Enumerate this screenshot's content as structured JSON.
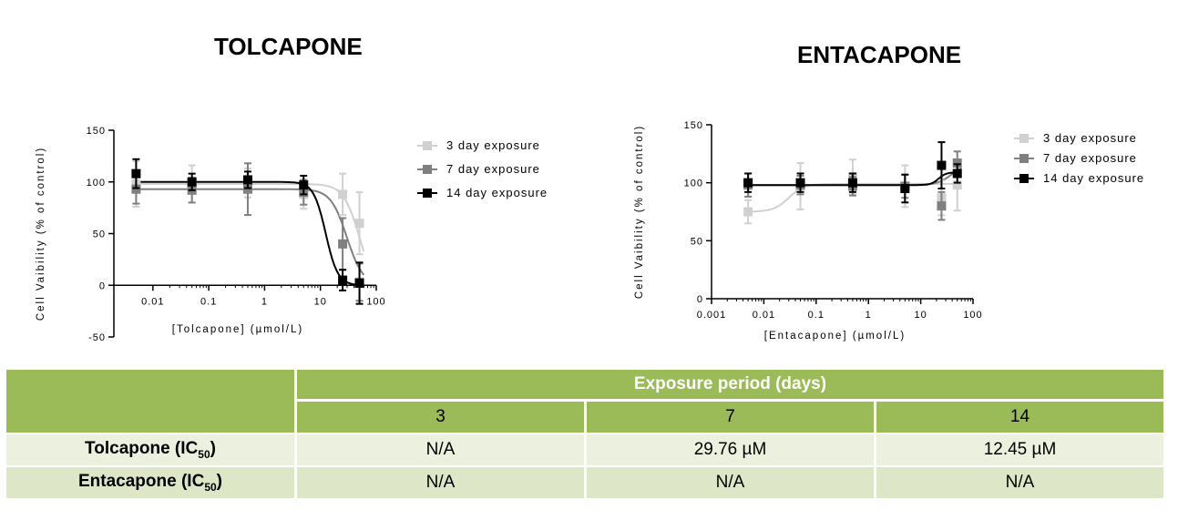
{
  "chart_data": [
    {
      "type": "scatter",
      "title": "TOLCAPONE",
      "xlabel": "[Tolcapone] (µmol/L)",
      "ylabel": "Cell Vaibility (% of control)",
      "xscale": "log",
      "xlim": [
        0.002,
        100
      ],
      "ylim": [
        -50,
        150
      ],
      "xticks": [
        0.01,
        0.1,
        1,
        10,
        100
      ],
      "xtick_labels": [
        "0.01",
        "0.1",
        "1",
        "10",
        "100"
      ],
      "yticks": [
        -50,
        0,
        50,
        100,
        150
      ],
      "ytick_labels": [
        "-50",
        "0",
        "50",
        "100",
        "150"
      ],
      "legend_position": "right",
      "series": [
        {
          "name": "3 day exposure",
          "color": "#d0d0d0",
          "x": [
            0.005,
            0.05,
            0.5,
            5,
            25,
            50
          ],
          "y": [
            98,
            98,
            99,
            88,
            88,
            60
          ],
          "err": [
            22,
            18,
            14,
            14,
            20,
            30
          ],
          "fit": {
            "top": 98,
            "bottom": -5,
            "ic50": 50,
            "hill": 3
          }
        },
        {
          "name": "7 day exposure",
          "color": "#7f7f7f",
          "x": [
            0.005,
            0.05,
            0.5,
            5,
            25,
            50
          ],
          "y": [
            93,
            92,
            93,
            90,
            40,
            3
          ],
          "err": [
            14,
            12,
            25,
            12,
            25,
            18
          ],
          "fit": {
            "top": 93,
            "bottom": 0,
            "ic50": 29.76,
            "hill": 3
          }
        },
        {
          "name": "14 day exposure",
          "color": "#000000",
          "x": [
            0.005,
            0.05,
            0.5,
            5,
            25,
            50
          ],
          "y": [
            108,
            100,
            102,
            97,
            5,
            2
          ],
          "err": [
            14,
            8,
            8,
            9,
            10,
            20
          ],
          "fit": {
            "top": 100,
            "bottom": 0,
            "ic50": 12.45,
            "hill": 4
          }
        }
      ]
    },
    {
      "type": "scatter",
      "title": "ENTACAPONE",
      "xlabel": "[Entacapone] (µmol/L)",
      "ylabel": "Cell Vaibility (% of control)",
      "xscale": "log",
      "xlim": [
        0.001,
        100
      ],
      "ylim": [
        0,
        150
      ],
      "xticks": [
        0.001,
        0.01,
        0.1,
        1,
        10,
        100
      ],
      "xtick_labels": [
        "0.001",
        "0.01",
        "0.1",
        "1",
        "10",
        "100"
      ],
      "yticks": [
        0,
        50,
        100,
        150
      ],
      "ytick_labels": [
        "0",
        "50",
        "100",
        "150"
      ],
      "legend_position": "top-right",
      "series": [
        {
          "name": "3 day exposure",
          "color": "#d0d0d0",
          "x": [
            0.005,
            0.05,
            0.5,
            5,
            25,
            50
          ],
          "y": [
            75,
            97,
            105,
            97,
            87,
            98
          ],
          "err": [
            10,
            20,
            15,
            18,
            15,
            22
          ],
          "fit": {
            "bottom": 75,
            "top": 99,
            "ec50": 0.03,
            "hill": 3
          }
        },
        {
          "name": "7 day exposure",
          "color": "#7f7f7f",
          "x": [
            0.005,
            0.05,
            0.5,
            5,
            25,
            50
          ],
          "y": [
            98,
            98,
            97,
            97,
            80,
            117
          ],
          "err": [
            10,
            8,
            8,
            10,
            12,
            10
          ],
          "fit": {
            "bottom": 98,
            "top": 117,
            "ec50": 40,
            "hill": 3
          }
        },
        {
          "name": "14 day exposure",
          "color": "#000000",
          "x": [
            0.005,
            0.05,
            0.5,
            5,
            25,
            50
          ],
          "y": [
            100,
            100,
            100,
            95,
            115,
            108
          ],
          "err": [
            8,
            8,
            8,
            12,
            20,
            8
          ],
          "fit": {
            "bottom": 98,
            "top": 109,
            "ec50": 22,
            "hill": 6
          }
        }
      ]
    }
  ],
  "table": {
    "header": "Exposure period (days)",
    "days": [
      "3",
      "7",
      "14"
    ],
    "rows": [
      {
        "name": "Tolcapone (IC",
        "sub": "50",
        "close": ")",
        "values": [
          "N/A",
          "29.76 µM",
          "12.45 µM"
        ]
      },
      {
        "name": "Entacapone (IC",
        "sub": "50",
        "close": ")",
        "values": [
          "N/A",
          "N/A",
          "N/A"
        ]
      }
    ]
  }
}
